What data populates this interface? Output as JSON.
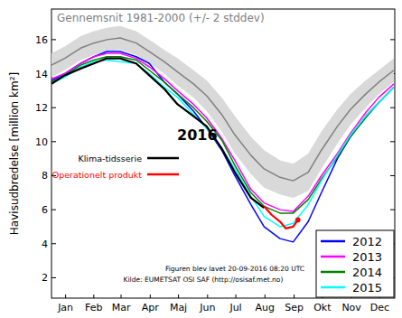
{
  "chart_data": {
    "type": "line",
    "y_label": "Havisudbredelse [million km²]",
    "x": [
      1,
      15,
      32,
      46,
      60,
      74,
      91,
      105,
      121,
      135,
      152,
      166,
      182,
      196,
      213,
      227,
      244,
      258,
      274,
      288,
      305,
      319,
      335,
      349,
      365
    ],
    "xlim": [
      1,
      366
    ],
    "xticks": [
      {
        "value": 16,
        "label": "Jan"
      },
      {
        "value": 46,
        "label": "Feb"
      },
      {
        "value": 75,
        "label": "Mar"
      },
      {
        "value": 106,
        "label": "Apr"
      },
      {
        "value": 136,
        "label": "Maj"
      },
      {
        "value": 167,
        "label": "Jun"
      },
      {
        "value": 197,
        "label": "Jul"
      },
      {
        "value": 228,
        "label": "Aug"
      },
      {
        "value": 259,
        "label": "Sep"
      },
      {
        "value": 289,
        "label": "Okt"
      },
      {
        "value": 320,
        "label": "Nov"
      },
      {
        "value": 350,
        "label": "Dec"
      }
    ],
    "ylim": [
      0.8,
      17.8
    ],
    "yticks": [
      2,
      4,
      6,
      8,
      10,
      12,
      14,
      16
    ],
    "grid": false,
    "legend": "lower right",
    "annotations": [
      "2016",
      "Figuren blev lavet 20-09-2016 08:20 UTC",
      "Kilde: EUMETSAT OSI SAF (http://osisaf.met.no)"
    ],
    "series": [
      {
        "name": "Gennemsnit 1981-2000 (+/- 2 stddev)",
        "color": "#808080",
        "values": [
          14.5,
          14.9,
          15.5,
          15.8,
          16.0,
          16.1,
          15.8,
          15.3,
          14.7,
          14.1,
          13.4,
          12.7,
          11.6,
          10.4,
          9.2,
          8.4,
          7.9,
          7.7,
          8.2,
          9.5,
          10.9,
          11.9,
          12.8,
          13.5,
          14.2
        ],
        "upper": [
          15.2,
          15.6,
          16.2,
          16.5,
          16.7,
          16.8,
          16.5,
          16.0,
          15.4,
          14.9,
          14.2,
          13.6,
          12.6,
          11.5,
          10.3,
          9.5,
          8.9,
          8.7,
          9.3,
          10.6,
          11.9,
          12.8,
          13.6,
          14.2,
          14.9
        ],
        "lower": [
          13.8,
          14.2,
          14.8,
          15.1,
          15.3,
          15.4,
          15.1,
          14.6,
          14.0,
          13.3,
          12.6,
          11.8,
          10.6,
          9.3,
          8.1,
          7.3,
          6.9,
          6.7,
          7.1,
          8.4,
          9.9,
          11.0,
          12.0,
          12.8,
          13.5
        ]
      },
      {
        "name": "2012",
        "color": "#0000ff",
        "values": [
          13.6,
          14.0,
          14.6,
          15.0,
          15.3,
          15.3,
          15.0,
          14.6,
          13.5,
          12.8,
          11.8,
          10.8,
          9.5,
          8.0,
          6.3,
          5.0,
          4.3,
          4.1,
          5.3,
          7.0,
          9.0,
          10.3,
          11.5,
          12.3,
          13.2
        ]
      },
      {
        "name": "2013",
        "color": "#ff00ff",
        "values": [
          13.7,
          14.0,
          14.6,
          15.0,
          15.2,
          15.2,
          14.9,
          14.4,
          13.7,
          13.0,
          12.2,
          11.4,
          10.2,
          8.9,
          7.2,
          6.4,
          6.0,
          5.9,
          6.8,
          8.0,
          9.3,
          10.5,
          11.7,
          12.6,
          13.4
        ]
      },
      {
        "name": "2014",
        "color": "#008000",
        "values": [
          13.5,
          13.9,
          14.5,
          14.8,
          15.0,
          15.0,
          14.8,
          14.2,
          13.5,
          12.8,
          12.0,
          11.2,
          10.1,
          8.6,
          7.0,
          6.2,
          5.8,
          5.8,
          6.6,
          7.8,
          9.1,
          10.3,
          11.4,
          12.3,
          13.2
        ]
      },
      {
        "name": "2015",
        "color": "#00ffff",
        "values": [
          13.4,
          13.8,
          14.4,
          14.7,
          14.8,
          14.7,
          14.6,
          14.0,
          13.2,
          12.6,
          11.6,
          10.8,
          9.6,
          8.4,
          6.8,
          5.6,
          5.0,
          5.2,
          6.3,
          7.7,
          9.2,
          10.4,
          11.5,
          12.3,
          13.2
        ]
      },
      {
        "name": "Klima-tidsserie",
        "color": "#000000",
        "x": [
          1,
          15,
          32,
          46,
          60,
          74,
          91,
          105,
          121,
          135,
          152,
          166,
          182,
          196,
          213,
          227
        ],
        "values": [
          13.4,
          13.9,
          14.3,
          14.6,
          14.9,
          14.9,
          14.6,
          13.9,
          13.1,
          12.2,
          11.5,
          10.9,
          9.6,
          8.2,
          6.7,
          6.1
        ]
      },
      {
        "name": "Operationelt produkt",
        "color": "#ff0000",
        "marker": "circle",
        "x": [
          227,
          235,
          244,
          250,
          258,
          263
        ],
        "values": [
          6.2,
          5.7,
          5.3,
          4.9,
          5.0,
          5.4
        ]
      }
    ]
  }
}
